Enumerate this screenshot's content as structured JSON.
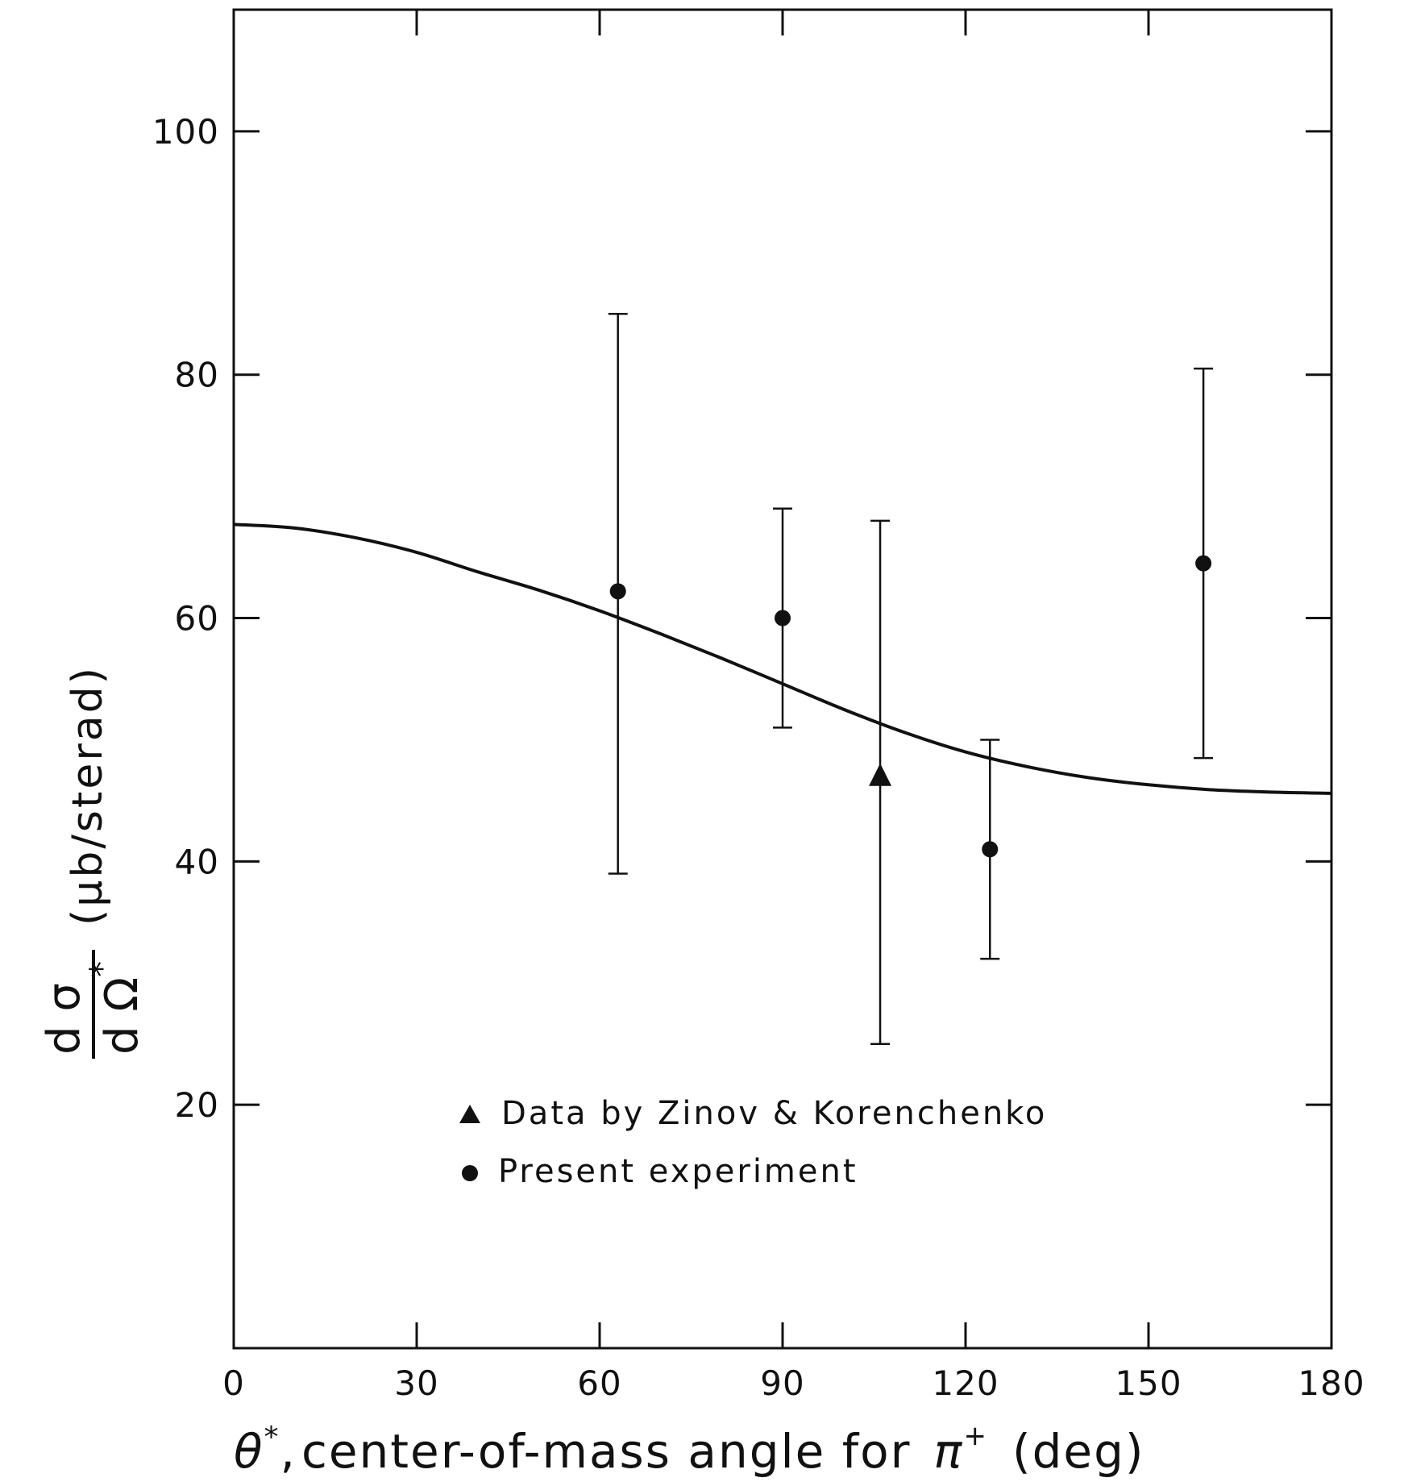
{
  "chart_data": {
    "type": "scatter",
    "xlim": [
      0,
      180
    ],
    "ylim": [
      0,
      110
    ],
    "x_ticks": [
      0,
      30,
      60,
      90,
      120,
      150,
      180
    ],
    "y_ticks": [
      20,
      40,
      60,
      80,
      100
    ],
    "x_tick_labels": [
      "0",
      "30",
      "60",
      "90",
      "120",
      "150",
      "180"
    ],
    "y_tick_labels": [
      "20",
      "40",
      "60",
      "80",
      "100"
    ],
    "xlabel": "θ*, center-of-mass angle for π⁺ (deg)",
    "xlabel_parts": {
      "theta": "θ",
      "star": "*",
      "comma": ",",
      "text": "center-of-mass angle for",
      "pi": "π",
      "plus": "+",
      "unit": "(deg)"
    },
    "ylabel": "dσ/dΩ* (μb/sterad)",
    "ylabel_parts": {
      "num": "d σ",
      "den": "d Ω",
      "star": "*",
      "unit": "(μb/sterad)"
    },
    "grid": false,
    "legend_position": "bottom-center",
    "series": [
      {
        "name": "Data by Zinov & Korenchenko",
        "marker": "triangle",
        "points": [
          {
            "x": 106,
            "y": 47,
            "ylow": 25,
            "yhigh": 68
          }
        ]
      },
      {
        "name": "Present experiment",
        "marker": "circle",
        "points": [
          {
            "x": 63,
            "y": 62.2,
            "ylow": 39,
            "yhigh": 85
          },
          {
            "x": 90,
            "y": 60,
            "ylow": 51,
            "yhigh": 69
          },
          {
            "x": 124,
            "y": 41,
            "ylow": 32,
            "yhigh": 50
          },
          {
            "x": 159,
            "y": 64.5,
            "ylow": 48.5,
            "yhigh": 80.5
          }
        ]
      }
    ],
    "fit_curve": {
      "description": "smooth curve",
      "x": [
        0,
        10,
        20,
        30,
        40,
        50,
        60,
        70,
        80,
        90,
        100,
        110,
        120,
        130,
        140,
        150,
        160,
        170,
        180
      ],
      "y": [
        67.7,
        67.4,
        66.6,
        65.4,
        63.8,
        62.3,
        60.6,
        58.7,
        56.7,
        54.6,
        52.5,
        50.6,
        49.0,
        47.8,
        46.9,
        46.3,
        45.9,
        45.7,
        45.6
      ]
    }
  }
}
